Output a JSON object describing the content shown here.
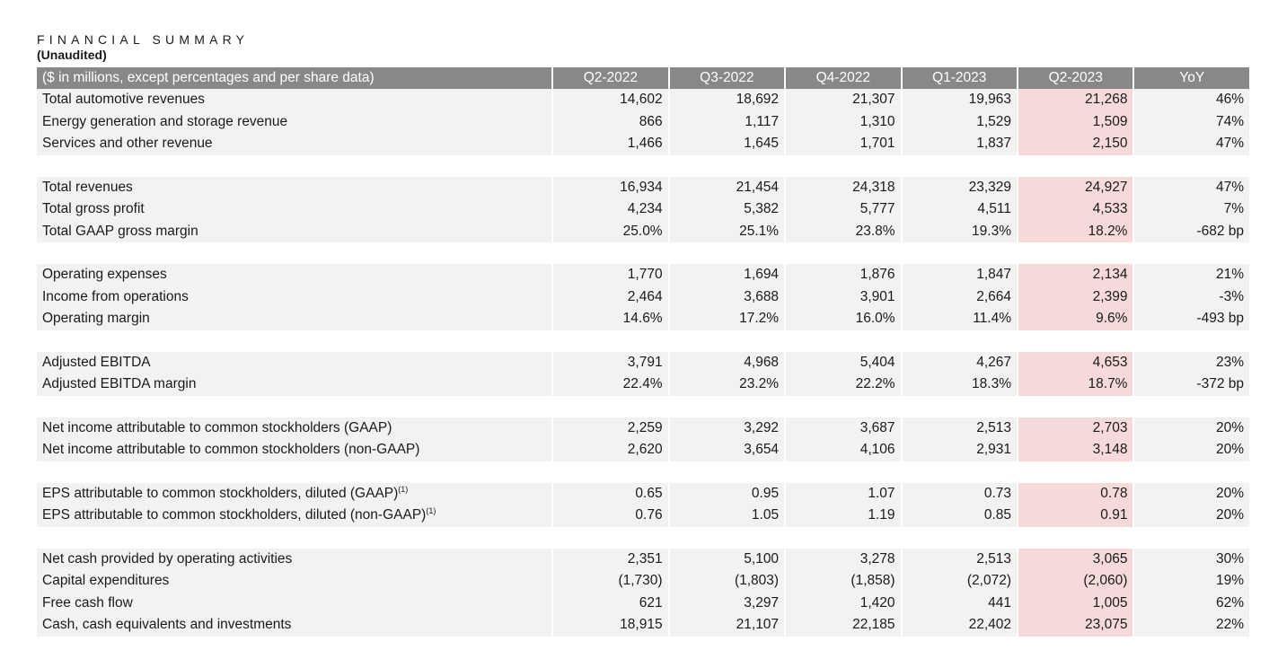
{
  "header": {
    "title": "FINANCIAL SUMMARY",
    "subtitle": "(Unaudited)"
  },
  "table": {
    "label_header": "($ in millions, except percentages and per share data)",
    "columns": [
      "Q2-2022",
      "Q3-2022",
      "Q4-2022",
      "Q1-2023",
      "Q2-2023",
      "YoY"
    ],
    "highlight_color": "#f6dada",
    "header_color": "#888888",
    "groups": [
      [
        {
          "label": "Total automotive revenues",
          "sup": "",
          "values": [
            "14,602",
            "18,692",
            "21,307",
            "19,963",
            "21,268",
            "46%"
          ]
        },
        {
          "label": "Energy generation and storage revenue",
          "sup": "",
          "values": [
            "866",
            "1,117",
            "1,310",
            "1,529",
            "1,509",
            "74%"
          ]
        },
        {
          "label": "Services and other revenue",
          "sup": "",
          "values": [
            "1,466",
            "1,645",
            "1,701",
            "1,837",
            "2,150",
            "47%"
          ]
        }
      ],
      [
        {
          "label": "Total revenues",
          "sup": "",
          "values": [
            "16,934",
            "21,454",
            "24,318",
            "23,329",
            "24,927",
            "47%"
          ]
        },
        {
          "label": "Total gross profit",
          "sup": "",
          "values": [
            "4,234",
            "5,382",
            "5,777",
            "4,511",
            "4,533",
            "7%"
          ]
        },
        {
          "label": "Total GAAP gross margin",
          "sup": "",
          "values": [
            "25.0%",
            "25.1%",
            "23.8%",
            "19.3%",
            "18.2%",
            "-682 bp"
          ]
        }
      ],
      [
        {
          "label": "Operating expenses",
          "sup": "",
          "values": [
            "1,770",
            "1,694",
            "1,876",
            "1,847",
            "2,134",
            "21%"
          ]
        },
        {
          "label": "Income from operations",
          "sup": "",
          "values": [
            "2,464",
            "3,688",
            "3,901",
            "2,664",
            "2,399",
            "-3%"
          ]
        },
        {
          "label": "Operating margin",
          "sup": "",
          "values": [
            "14.6%",
            "17.2%",
            "16.0%",
            "11.4%",
            "9.6%",
            "-493 bp"
          ]
        }
      ],
      [
        {
          "label": "Adjusted EBITDA",
          "sup": "",
          "values": [
            "3,791",
            "4,968",
            "5,404",
            "4,267",
            "4,653",
            "23%"
          ]
        },
        {
          "label": "Adjusted EBITDA margin",
          "sup": "",
          "values": [
            "22.4%",
            "23.2%",
            "22.2%",
            "18.3%",
            "18.7%",
            "-372 bp"
          ]
        }
      ],
      [
        {
          "label": "Net income attributable to common stockholders (GAAP)",
          "sup": "",
          "values": [
            "2,259",
            "3,292",
            "3,687",
            "2,513",
            "2,703",
            "20%"
          ]
        },
        {
          "label": "Net income attributable to common stockholders (non-GAAP)",
          "sup": "",
          "values": [
            "2,620",
            "3,654",
            "4,106",
            "2,931",
            "3,148",
            "20%"
          ]
        }
      ],
      [
        {
          "label": "EPS attributable to common stockholders, diluted (GAAP)",
          "sup": "(1)",
          "values": [
            "0.65",
            "0.95",
            "1.07",
            "0.73",
            "0.78",
            "20%"
          ]
        },
        {
          "label": "EPS attributable to common stockholders, diluted (non-GAAP)",
          "sup": "(1)",
          "values": [
            "0.76",
            "1.05",
            "1.19",
            "0.85",
            "0.91",
            "20%"
          ]
        }
      ],
      [
        {
          "label": "Net cash provided by operating activities",
          "sup": "",
          "values": [
            "2,351",
            "5,100",
            "3,278",
            "2,513",
            "3,065",
            "30%"
          ]
        },
        {
          "label": "Capital expenditures",
          "sup": "",
          "values": [
            "(1,730)",
            "(1,803)",
            "(1,858)",
            "(2,072)",
            "(2,060)",
            "19%"
          ]
        },
        {
          "label": "Free cash flow",
          "sup": "",
          "values": [
            "621",
            "3,297",
            "1,420",
            "441",
            "1,005",
            "62%"
          ]
        },
        {
          "label": "Cash, cash equivalents and investments",
          "sup": "",
          "values": [
            "18,915",
            "21,107",
            "22,185",
            "22,402",
            "23,075",
            "22%"
          ]
        }
      ]
    ]
  }
}
